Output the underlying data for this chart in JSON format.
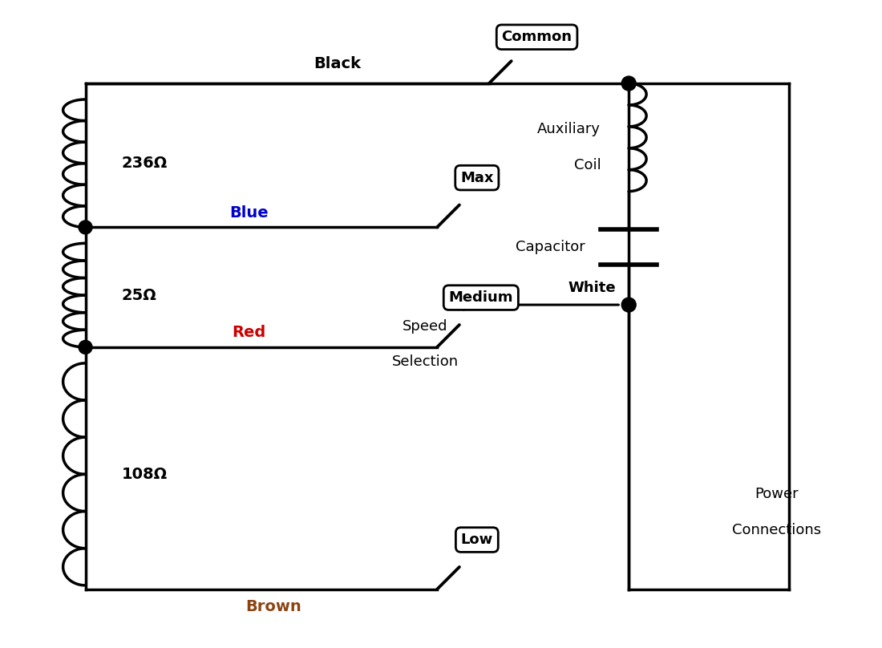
{
  "bg_color": "#ffffff",
  "line_color": "#000000",
  "line_width": 2.5,
  "labels": {
    "common": "Common",
    "black": "Black",
    "blue_wire": "Blue",
    "blue_color": "#0000cc",
    "red_wire": "Red",
    "red_color": "#cc0000",
    "brown_wire": "Brown",
    "brown_color": "#8B4513",
    "max_label": "Max",
    "medium_label": "Medium",
    "low_label": "Low",
    "r1": "236Ω",
    "r2": "25Ω",
    "r3": "108Ω",
    "aux_coil_line1": "Auxiliary",
    "aux_coil_line2": "Coil",
    "capacitor": "Capacitor",
    "white_wire": "White",
    "speed_sel_line1": "Speed",
    "speed_sel_line2": "Selection",
    "power_conn_line1": "Power",
    "power_conn_line2": "Connections"
  },
  "figsize": [
    11.0,
    8.08
  ],
  "dpi": 100
}
